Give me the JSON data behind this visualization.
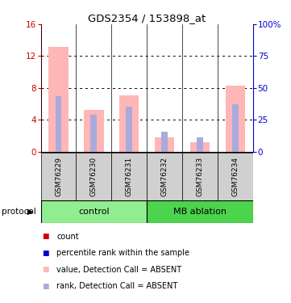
{
  "title": "GDS2354 / 153898_at",
  "samples": [
    "GSM76229",
    "GSM76230",
    "GSM76231",
    "GSM76232",
    "GSM76233",
    "GSM76234"
  ],
  "groups": [
    {
      "label": "control",
      "color": "#90EE90",
      "samples": [
        0,
        1,
        2
      ]
    },
    {
      "label": "MB ablation",
      "color": "#4CD44C",
      "samples": [
        3,
        4,
        5
      ]
    }
  ],
  "bar_values_pink": [
    13.2,
    5.2,
    7.1,
    1.8,
    1.2,
    8.3
  ],
  "bar_values_lightblue": [
    7.0,
    4.6,
    5.6,
    2.5,
    1.8,
    5.9
  ],
  "ylim_left": [
    0,
    16
  ],
  "ylim_right": [
    0,
    100
  ],
  "yticks_left": [
    0,
    4,
    8,
    12,
    16
  ],
  "yticks_right": [
    0,
    25,
    50,
    75,
    100
  ],
  "ytick_labels_right": [
    "0",
    "25",
    "50",
    "75",
    "100%"
  ],
  "color_pink": "#FFB6B6",
  "color_lightblue": "#AAAADD",
  "color_red": "#CC0000",
  "color_blue": "#0000CC",
  "left_axis_color": "#CC0000",
  "right_axis_color": "#0000CC",
  "bg_color": "#FFFFFF",
  "sample_box_color": "#D0D0D0",
  "legend_items": [
    {
      "color": "#CC0000",
      "label": "count"
    },
    {
      "color": "#0000CC",
      "label": "percentile rank within the sample"
    },
    {
      "color": "#FFB6B6",
      "label": "value, Detection Call = ABSENT"
    },
    {
      "color": "#AAAADD",
      "label": "rank, Detection Call = ABSENT"
    }
  ]
}
